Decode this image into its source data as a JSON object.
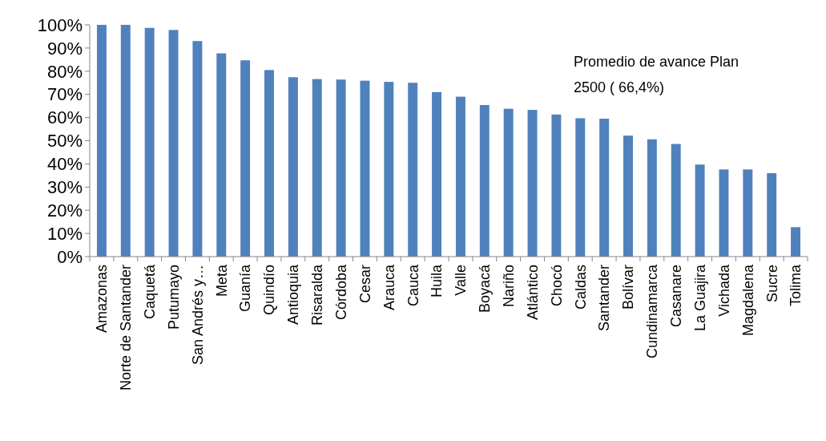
{
  "chart_data": {
    "type": "bar",
    "categories": [
      "Amazonas",
      "Norte de Santander",
      "Caquetá",
      "Putumayo",
      "San Andrés y…",
      "Meta",
      "Guanía",
      "Quindío",
      "Antioquia",
      "Risaralda",
      "Córdoba",
      "Cesar",
      "Arauca",
      "Cauca",
      "Huila",
      "Valle",
      "Boyacá",
      "Nariño",
      "Atlántico",
      "Chocó",
      "Caldas",
      "Santander",
      "Bolívar",
      "Cundinamarca",
      "Casanare",
      "La Guajira",
      "Vichada",
      "Magdalena",
      "Sucre",
      "Tolima"
    ],
    "values": [
      100,
      100,
      98.7,
      97.8,
      93,
      87.7,
      84.7,
      80.5,
      77.4,
      76.6,
      76.4,
      75.9,
      75.4,
      75,
      71,
      69,
      65.4,
      63.8,
      63.3,
      61.3,
      59.7,
      59.5,
      52.2,
      50.6,
      48.6,
      39.7,
      37.6,
      37.6,
      36,
      12.7
    ],
    "color": "#4f81bd",
    "ylim": [
      0,
      100
    ],
    "yticks": [
      {
        "value": 0,
        "label": "0%"
      },
      {
        "value": 10,
        "label": "10%"
      },
      {
        "value": 20,
        "label": "20%"
      },
      {
        "value": 30,
        "label": "30%"
      },
      {
        "value": 40,
        "label": "40%"
      },
      {
        "value": 50,
        "label": "50%"
      },
      {
        "value": 60,
        "label": "60%"
      },
      {
        "value": 70,
        "label": "70%"
      },
      {
        "value": 80,
        "label": "80%"
      },
      {
        "value": 90,
        "label": "90%"
      },
      {
        "value": 100,
        "label": "100%"
      }
    ],
    "grid": false,
    "annotations": [
      "Promedio de avance Plan 2500  ( 66,4%)"
    ]
  }
}
